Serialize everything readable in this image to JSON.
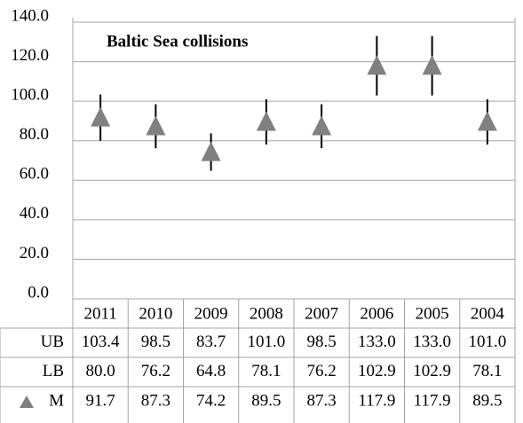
{
  "chart_data": {
    "type": "errorbar",
    "title": "Baltic Sea collisions",
    "categories": [
      "2011",
      "2010",
      "2009",
      "2008",
      "2007",
      "2006",
      "2005",
      "2004"
    ],
    "series": [
      {
        "name": "UB",
        "values": [
          103.4,
          98.5,
          83.7,
          101.0,
          98.5,
          133.0,
          133.0,
          101.0
        ],
        "value_labels": [
          "103.4",
          "98.5",
          "83.7",
          "101.0",
          "98.5",
          "133.0",
          "133.0",
          "101.0"
        ]
      },
      {
        "name": "LB",
        "values": [
          80.0,
          76.2,
          64.8,
          78.1,
          76.2,
          102.9,
          102.9,
          78.1
        ],
        "value_labels": [
          "80.0",
          "76.2",
          "64.8",
          "78.1",
          "76.2",
          "102.9",
          "102.9",
          "78.1"
        ]
      },
      {
        "name": "M",
        "color": "#808080",
        "values": [
          91.7,
          87.3,
          74.2,
          89.5,
          87.3,
          117.9,
          117.9,
          89.5
        ],
        "value_labels": [
          "91.7",
          "87.3",
          "74.2",
          "89.5",
          "87.3",
          "117.9",
          "117.9",
          "89.5"
        ]
      }
    ],
    "ylim": [
      0,
      140
    ],
    "yticks": [
      {
        "value": 0,
        "label": "0.0"
      },
      {
        "value": 20,
        "label": "20.0"
      },
      {
        "value": 40,
        "label": "40.0"
      },
      {
        "value": 60,
        "label": "60.0"
      },
      {
        "value": 80,
        "label": "80.0"
      },
      {
        "value": 100,
        "label": "100.0"
      },
      {
        "value": 120,
        "label": "120.0"
      },
      {
        "value": 140,
        "label": "140.0"
      }
    ],
    "grid": true
  }
}
